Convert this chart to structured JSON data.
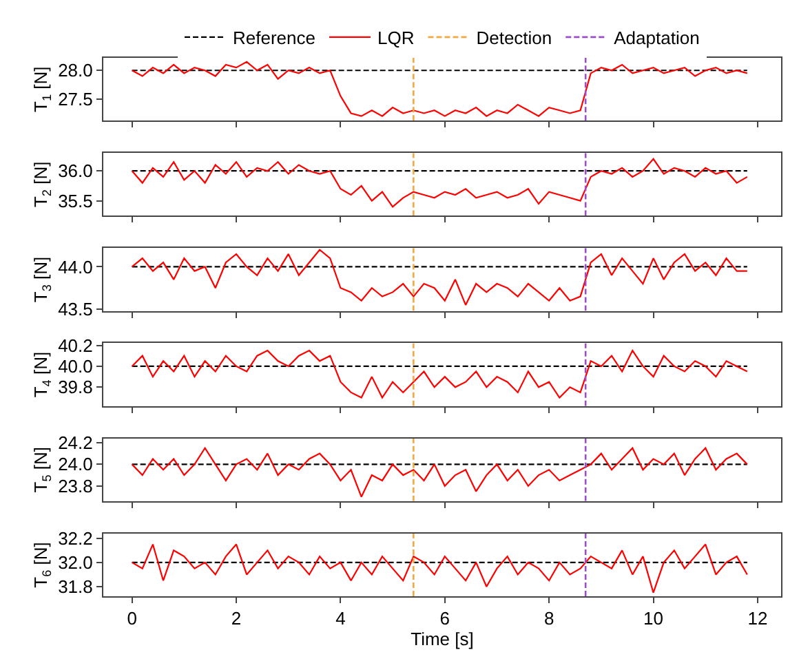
{
  "chart_data": [
    {
      "type": "line",
      "ylabel": "T$_{1}$ [N]",
      "xlim": [
        -0.55,
        12.45
      ],
      "xticks": [
        0,
        2,
        4,
        6,
        8,
        10,
        12
      ],
      "ylim": [
        27.12,
        28.22
      ],
      "yticks": [
        27.5,
        {
          "value": 28.0,
          "label": "28.0"
        }
      ],
      "tick_labels": "y",
      "legend": "top",
      "x": [
        0,
        0.2,
        0.4,
        0.6,
        0.8,
        1.0,
        1.2,
        1.4,
        1.6,
        1.8,
        2.0,
        2.2,
        2.4,
        2.6,
        2.8,
        3.0,
        3.2,
        3.4,
        3.6,
        3.8,
        4.0,
        4.2,
        4.4,
        4.6,
        4.8,
        5.0,
        5.2,
        5.4,
        5.6,
        5.8,
        6.0,
        6.2,
        6.4,
        6.6,
        6.8,
        7.0,
        7.2,
        7.4,
        7.6,
        7.8,
        8.0,
        8.2,
        8.4,
        8.6,
        8.8,
        9.0,
        9.2,
        9.4,
        9.6,
        9.8,
        10.0,
        10.2,
        10.4,
        10.6,
        10.8,
        11.0,
        11.2,
        11.4,
        11.6,
        11.8
      ],
      "series": [
        {
          "name": "Reference",
          "color": "#000000",
          "line_style": "dashed",
          "values": [
            28,
            28,
            28,
            28,
            28,
            28,
            28,
            28,
            28,
            28,
            28,
            28,
            28,
            28,
            28,
            28,
            28,
            28,
            28,
            28,
            28,
            28,
            28,
            28,
            28,
            28,
            28,
            28,
            28,
            28,
            28,
            28,
            28,
            28,
            28,
            28,
            28,
            28,
            28,
            28,
            28,
            28,
            28,
            28,
            28,
            28,
            28,
            28,
            28,
            28,
            28,
            28,
            28,
            28,
            28,
            28,
            28,
            28,
            28,
            28
          ]
        },
        {
          "name": "LQR",
          "color": "#ff0000",
          "line_style": "solid",
          "values": [
            28.0,
            27.9,
            28.05,
            27.95,
            28.1,
            27.95,
            28.05,
            28.0,
            27.9,
            28.1,
            28.05,
            28.15,
            28.0,
            28.1,
            27.85,
            28.0,
            27.95,
            28.05,
            27.95,
            28.0,
            27.55,
            27.25,
            27.2,
            27.3,
            27.2,
            27.35,
            27.25,
            27.3,
            27.25,
            27.3,
            27.2,
            27.3,
            27.25,
            27.35,
            27.2,
            27.3,
            27.25,
            27.4,
            27.3,
            27.2,
            27.35,
            27.3,
            27.25,
            27.3,
            27.95,
            28.05,
            28.0,
            28.1,
            27.95,
            28.0,
            28.05,
            27.95,
            28.0,
            28.05,
            27.9,
            28.0,
            28.05,
            27.95,
            28.0,
            27.95
          ]
        }
      ],
      "ref_lines": [
        {
          "axis": "x",
          "value": 5.4,
          "label": "Detection",
          "color": "#f5a742",
          "line_style": "dashed"
        },
        {
          "axis": "x",
          "value": 8.7,
          "label": "Adaptation",
          "color": "#9b4dca",
          "line_style": "dashed"
        }
      ]
    },
    {
      "type": "line",
      "ylabel": "T$_{2}$ [N]",
      "xlim": [
        -0.55,
        12.45
      ],
      "xticks": [
        0,
        2,
        4,
        6,
        8,
        10,
        12
      ],
      "ylim": [
        35.25,
        36.3
      ],
      "yticks": [
        35.5,
        {
          "value": 36.0,
          "label": "36.0"
        }
      ],
      "tick_labels": "y",
      "x": [
        0,
        0.2,
        0.4,
        0.6,
        0.8,
        1.0,
        1.2,
        1.4,
        1.6,
        1.8,
        2.0,
        2.2,
        2.4,
        2.6,
        2.8,
        3.0,
        3.2,
        3.4,
        3.6,
        3.8,
        4.0,
        4.2,
        4.4,
        4.6,
        4.8,
        5.0,
        5.2,
        5.4,
        5.6,
        5.8,
        6.0,
        6.2,
        6.4,
        6.6,
        6.8,
        7.0,
        7.2,
        7.4,
        7.6,
        7.8,
        8.0,
        8.2,
        8.4,
        8.6,
        8.8,
        9.0,
        9.2,
        9.4,
        9.6,
        9.8,
        10.0,
        10.2,
        10.4,
        10.6,
        10.8,
        11.0,
        11.2,
        11.4,
        11.6,
        11.8
      ],
      "series": [
        {
          "name": "Reference",
          "color": "#000000",
          "line_style": "dashed",
          "values": [
            36,
            36,
            36,
            36,
            36,
            36,
            36,
            36,
            36,
            36,
            36,
            36,
            36,
            36,
            36,
            36,
            36,
            36,
            36,
            36,
            36,
            36,
            36,
            36,
            36,
            36,
            36,
            36,
            36,
            36,
            36,
            36,
            36,
            36,
            36,
            36,
            36,
            36,
            36,
            36,
            36,
            36,
            36,
            36,
            36,
            36,
            36,
            36,
            36,
            36,
            36,
            36,
            36,
            36,
            36,
            36,
            36,
            36,
            36,
            36
          ]
        },
        {
          "name": "LQR",
          "color": "#ff0000",
          "line_style": "solid",
          "values": [
            36.0,
            35.8,
            36.05,
            35.9,
            36.15,
            35.85,
            36.0,
            35.8,
            36.1,
            35.95,
            36.15,
            35.9,
            36.05,
            36.0,
            36.15,
            35.95,
            36.1,
            36.0,
            35.95,
            36.0,
            35.7,
            35.6,
            35.75,
            35.5,
            35.65,
            35.4,
            35.55,
            35.65,
            35.6,
            35.55,
            35.65,
            35.6,
            35.7,
            35.55,
            35.6,
            35.65,
            35.55,
            35.6,
            35.7,
            35.45,
            35.65,
            35.6,
            35.55,
            35.5,
            35.9,
            36.0,
            35.95,
            36.05,
            35.9,
            36.0,
            36.2,
            35.95,
            36.05,
            36.0,
            35.9,
            36.05,
            35.95,
            36.0,
            35.8,
            35.9
          ]
        }
      ],
      "ref_lines": [
        {
          "axis": "x",
          "value": 5.4,
          "color": "#f5a742",
          "line_style": "dashed"
        },
        {
          "axis": "x",
          "value": 8.7,
          "color": "#9b4dca",
          "line_style": "dashed"
        }
      ]
    },
    {
      "type": "line",
      "ylabel": "T$_{3}$ [N]",
      "xlim": [
        -0.55,
        12.45
      ],
      "xticks": [
        0,
        2,
        4,
        6,
        8,
        10,
        12
      ],
      "ylim": [
        43.48,
        44.22
      ],
      "yticks": [
        43.5,
        {
          "value": 44.0,
          "label": "44.0"
        }
      ],
      "tick_labels": "y",
      "x": [
        0,
        0.2,
        0.4,
        0.6,
        0.8,
        1.0,
        1.2,
        1.4,
        1.6,
        1.8,
        2.0,
        2.2,
        2.4,
        2.6,
        2.8,
        3.0,
        3.2,
        3.4,
        3.6,
        3.8,
        4.0,
        4.2,
        4.4,
        4.6,
        4.8,
        5.0,
        5.2,
        5.4,
        5.6,
        5.8,
        6.0,
        6.2,
        6.4,
        6.6,
        6.8,
        7.0,
        7.2,
        7.4,
        7.6,
        7.8,
        8.0,
        8.2,
        8.4,
        8.6,
        8.8,
        9.0,
        9.2,
        9.4,
        9.6,
        9.8,
        10.0,
        10.2,
        10.4,
        10.6,
        10.8,
        11.0,
        11.2,
        11.4,
        11.6,
        11.8
      ],
      "series": [
        {
          "name": "Reference",
          "color": "#000000",
          "line_style": "dashed",
          "values": [
            44,
            44,
            44,
            44,
            44,
            44,
            44,
            44,
            44,
            44,
            44,
            44,
            44,
            44,
            44,
            44,
            44,
            44,
            44,
            44,
            44,
            44,
            44,
            44,
            44,
            44,
            44,
            44,
            44,
            44,
            44,
            44,
            44,
            44,
            44,
            44,
            44,
            44,
            44,
            44,
            44,
            44,
            44,
            44,
            44,
            44,
            44,
            44,
            44,
            44,
            44,
            44,
            44,
            44,
            44,
            44,
            44,
            44,
            44,
            44
          ]
        },
        {
          "name": "LQR",
          "color": "#ff0000",
          "line_style": "solid",
          "values": [
            44.0,
            44.1,
            43.95,
            44.05,
            43.85,
            44.1,
            43.95,
            44.0,
            43.75,
            44.05,
            44.15,
            44.0,
            43.9,
            44.1,
            43.95,
            44.15,
            43.9,
            44.05,
            44.2,
            44.1,
            43.75,
            43.7,
            43.6,
            43.75,
            43.65,
            43.7,
            43.8,
            43.65,
            43.8,
            43.75,
            43.6,
            43.85,
            43.55,
            43.8,
            43.7,
            43.8,
            43.75,
            43.65,
            43.8,
            43.7,
            43.6,
            43.75,
            43.6,
            43.65,
            44.05,
            44.15,
            43.9,
            44.1,
            43.95,
            43.8,
            44.1,
            43.85,
            44.05,
            44.15,
            43.95,
            44.05,
            43.9,
            44.1,
            43.95,
            43.95
          ]
        }
      ],
      "ref_lines": [
        {
          "axis": "x",
          "value": 5.4,
          "color": "#f5a742",
          "line_style": "dashed"
        },
        {
          "axis": "x",
          "value": 8.7,
          "color": "#9b4dca",
          "line_style": "dashed"
        }
      ]
    },
    {
      "type": "line",
      "ylabel": "T$_{4}$ [N]",
      "xlim": [
        -0.55,
        12.45
      ],
      "xticks": [
        0,
        2,
        4,
        6,
        8,
        10,
        12
      ],
      "ylim": [
        39.62,
        40.22
      ],
      "yticks": [
        39.8,
        {
          "value": 40.0,
          "label": "40.0"
        },
        40.2
      ],
      "tick_labels": "y",
      "x": [
        0,
        0.2,
        0.4,
        0.6,
        0.8,
        1.0,
        1.2,
        1.4,
        1.6,
        1.8,
        2.0,
        2.2,
        2.4,
        2.6,
        2.8,
        3.0,
        3.2,
        3.4,
        3.6,
        3.8,
        4.0,
        4.2,
        4.4,
        4.6,
        4.8,
        5.0,
        5.2,
        5.4,
        5.6,
        5.8,
        6.0,
        6.2,
        6.4,
        6.6,
        6.8,
        7.0,
        7.2,
        7.4,
        7.6,
        7.8,
        8.0,
        8.2,
        8.4,
        8.6,
        8.8,
        9.0,
        9.2,
        9.4,
        9.6,
        9.8,
        10.0,
        10.2,
        10.4,
        10.6,
        10.8,
        11.0,
        11.2,
        11.4,
        11.6,
        11.8
      ],
      "series": [
        {
          "name": "Reference",
          "color": "#000000",
          "line_style": "dashed",
          "values": [
            40,
            40,
            40,
            40,
            40,
            40,
            40,
            40,
            40,
            40,
            40,
            40,
            40,
            40,
            40,
            40,
            40,
            40,
            40,
            40,
            40,
            40,
            40,
            40,
            40,
            40,
            40,
            40,
            40,
            40,
            40,
            40,
            40,
            40,
            40,
            40,
            40,
            40,
            40,
            40,
            40,
            40,
            40,
            40,
            40,
            40,
            40,
            40,
            40,
            40,
            40,
            40,
            40,
            40,
            40,
            40,
            40,
            40,
            40,
            40
          ]
        },
        {
          "name": "LQR",
          "color": "#ff0000",
          "line_style": "solid",
          "values": [
            40.0,
            40.1,
            39.9,
            40.05,
            39.95,
            40.1,
            39.9,
            40.05,
            39.95,
            40.1,
            40.0,
            39.95,
            40.1,
            40.15,
            40.05,
            40.0,
            40.1,
            40.15,
            40.05,
            40.1,
            39.85,
            39.75,
            39.7,
            39.9,
            39.7,
            39.85,
            39.75,
            39.85,
            39.95,
            39.8,
            39.9,
            39.8,
            39.85,
            39.95,
            39.8,
            39.9,
            39.85,
            39.75,
            39.95,
            39.8,
            39.85,
            39.7,
            39.8,
            39.75,
            40.05,
            40.0,
            40.1,
            39.95,
            40.15,
            40.0,
            39.9,
            40.1,
            40.0,
            39.95,
            40.05,
            40.0,
            39.9,
            40.05,
            40.0,
            39.95
          ]
        }
      ],
      "ref_lines": [
        {
          "axis": "x",
          "value": 5.4,
          "color": "#f5a742",
          "line_style": "dashed"
        },
        {
          "axis": "x",
          "value": 8.7,
          "color": "#9b4dca",
          "line_style": "dashed"
        }
      ]
    },
    {
      "type": "line",
      "ylabel": "T$_{5}$ [N]",
      "xlim": [
        -0.55,
        12.45
      ],
      "xticks": [
        0,
        2,
        4,
        6,
        8,
        10,
        12
      ],
      "ylim": [
        23.66,
        24.24
      ],
      "yticks": [
        23.8,
        {
          "value": 24.0,
          "label": "24.0"
        },
        24.2
      ],
      "tick_labels": "y",
      "x": [
        0,
        0.2,
        0.4,
        0.6,
        0.8,
        1.0,
        1.2,
        1.4,
        1.6,
        1.8,
        2.0,
        2.2,
        2.4,
        2.6,
        2.8,
        3.0,
        3.2,
        3.4,
        3.6,
        3.8,
        4.0,
        4.2,
        4.4,
        4.6,
        4.8,
        5.0,
        5.2,
        5.4,
        5.6,
        5.8,
        6.0,
        6.2,
        6.4,
        6.6,
        6.8,
        7.0,
        7.2,
        7.4,
        7.6,
        7.8,
        8.0,
        8.2,
        8.4,
        8.6,
        8.8,
        9.0,
        9.2,
        9.4,
        9.6,
        9.8,
        10.0,
        10.2,
        10.4,
        10.6,
        10.8,
        11.0,
        11.2,
        11.4,
        11.6,
        11.8
      ],
      "series": [
        {
          "name": "Reference",
          "color": "#000000",
          "line_style": "dashed",
          "values": [
            24,
            24,
            24,
            24,
            24,
            24,
            24,
            24,
            24,
            24,
            24,
            24,
            24,
            24,
            24,
            24,
            24,
            24,
            24,
            24,
            24,
            24,
            24,
            24,
            24,
            24,
            24,
            24,
            24,
            24,
            24,
            24,
            24,
            24,
            24,
            24,
            24,
            24,
            24,
            24,
            24,
            24,
            24,
            24,
            24,
            24,
            24,
            24,
            24,
            24,
            24,
            24,
            24,
            24,
            24,
            24,
            24,
            24,
            24,
            24
          ]
        },
        {
          "name": "LQR",
          "color": "#ff0000",
          "line_style": "solid",
          "values": [
            24.0,
            23.9,
            24.05,
            23.95,
            24.05,
            23.9,
            24.0,
            24.15,
            24.0,
            23.85,
            24.0,
            24.05,
            23.95,
            24.1,
            23.9,
            24.0,
            23.95,
            24.05,
            24.1,
            24.0,
            23.85,
            23.95,
            23.7,
            23.9,
            23.85,
            24.0,
            23.9,
            23.95,
            23.85,
            24.0,
            23.8,
            23.9,
            23.95,
            23.75,
            23.9,
            24.0,
            23.85,
            23.95,
            23.8,
            23.9,
            23.95,
            23.85,
            23.9,
            23.95,
            24.0,
            24.1,
            23.95,
            24.05,
            24.15,
            23.95,
            24.05,
            24.0,
            24.1,
            23.9,
            24.05,
            24.15,
            23.95,
            24.05,
            24.1,
            24.0
          ]
        }
      ],
      "ref_lines": [
        {
          "axis": "x",
          "value": 5.4,
          "color": "#f5a742",
          "line_style": "dashed"
        },
        {
          "axis": "x",
          "value": 8.7,
          "color": "#9b4dca",
          "line_style": "dashed"
        }
      ]
    },
    {
      "type": "line",
      "ylabel": "T$_{6}$ [N]",
      "xlabel": "Time [s]",
      "xlim": [
        -0.55,
        12.45
      ],
      "xticks": [
        0,
        2,
        4,
        6,
        8,
        10,
        12
      ],
      "ylim": [
        31.72,
        32.24
      ],
      "yticks": [
        31.8,
        {
          "value": 32.0,
          "label": "32.0"
        },
        32.2
      ],
      "x": [
        0,
        0.2,
        0.4,
        0.6,
        0.8,
        1.0,
        1.2,
        1.4,
        1.6,
        1.8,
        2.0,
        2.2,
        2.4,
        2.6,
        2.8,
        3.0,
        3.2,
        3.4,
        3.6,
        3.8,
        4.0,
        4.2,
        4.4,
        4.6,
        4.8,
        5.0,
        5.2,
        5.4,
        5.6,
        5.8,
        6.0,
        6.2,
        6.4,
        6.6,
        6.8,
        7.0,
        7.2,
        7.4,
        7.6,
        7.8,
        8.0,
        8.2,
        8.4,
        8.6,
        8.8,
        9.0,
        9.2,
        9.4,
        9.6,
        9.8,
        10.0,
        10.2,
        10.4,
        10.6,
        10.8,
        11.0,
        11.2,
        11.4,
        11.6,
        11.8
      ],
      "series": [
        {
          "name": "Reference",
          "color": "#000000",
          "line_style": "dashed",
          "values": [
            32,
            32,
            32,
            32,
            32,
            32,
            32,
            32,
            32,
            32,
            32,
            32,
            32,
            32,
            32,
            32,
            32,
            32,
            32,
            32,
            32,
            32,
            32,
            32,
            32,
            32,
            32,
            32,
            32,
            32,
            32,
            32,
            32,
            32,
            32,
            32,
            32,
            32,
            32,
            32,
            32,
            32,
            32,
            32,
            32,
            32,
            32,
            32,
            32,
            32,
            32,
            32,
            32,
            32,
            32,
            32,
            32,
            32,
            32,
            32
          ]
        },
        {
          "name": "LQR",
          "color": "#ff0000",
          "line_style": "solid",
          "values": [
            32.0,
            31.95,
            32.15,
            31.85,
            32.1,
            32.05,
            31.95,
            32.0,
            31.9,
            32.05,
            32.15,
            31.9,
            32.0,
            32.1,
            31.95,
            32.05,
            32.0,
            31.9,
            32.05,
            31.95,
            32.0,
            31.85,
            32.0,
            31.9,
            32.05,
            31.95,
            31.85,
            32.05,
            32.0,
            31.9,
            32.05,
            31.95,
            31.85,
            32.0,
            31.8,
            31.95,
            32.05,
            31.9,
            32.0,
            31.95,
            31.85,
            32.0,
            31.9,
            31.95,
            32.05,
            32.0,
            31.95,
            32.1,
            31.9,
            32.05,
            31.75,
            32.0,
            32.1,
            31.95,
            32.05,
            32.15,
            31.9,
            32.0,
            32.05,
            31.9
          ]
        }
      ],
      "ref_lines": [
        {
          "axis": "x",
          "value": 5.4,
          "color": "#f5a742",
          "line_style": "dashed"
        },
        {
          "axis": "x",
          "value": 8.7,
          "color": "#9b4dca",
          "line_style": "dashed"
        }
      ]
    }
  ]
}
